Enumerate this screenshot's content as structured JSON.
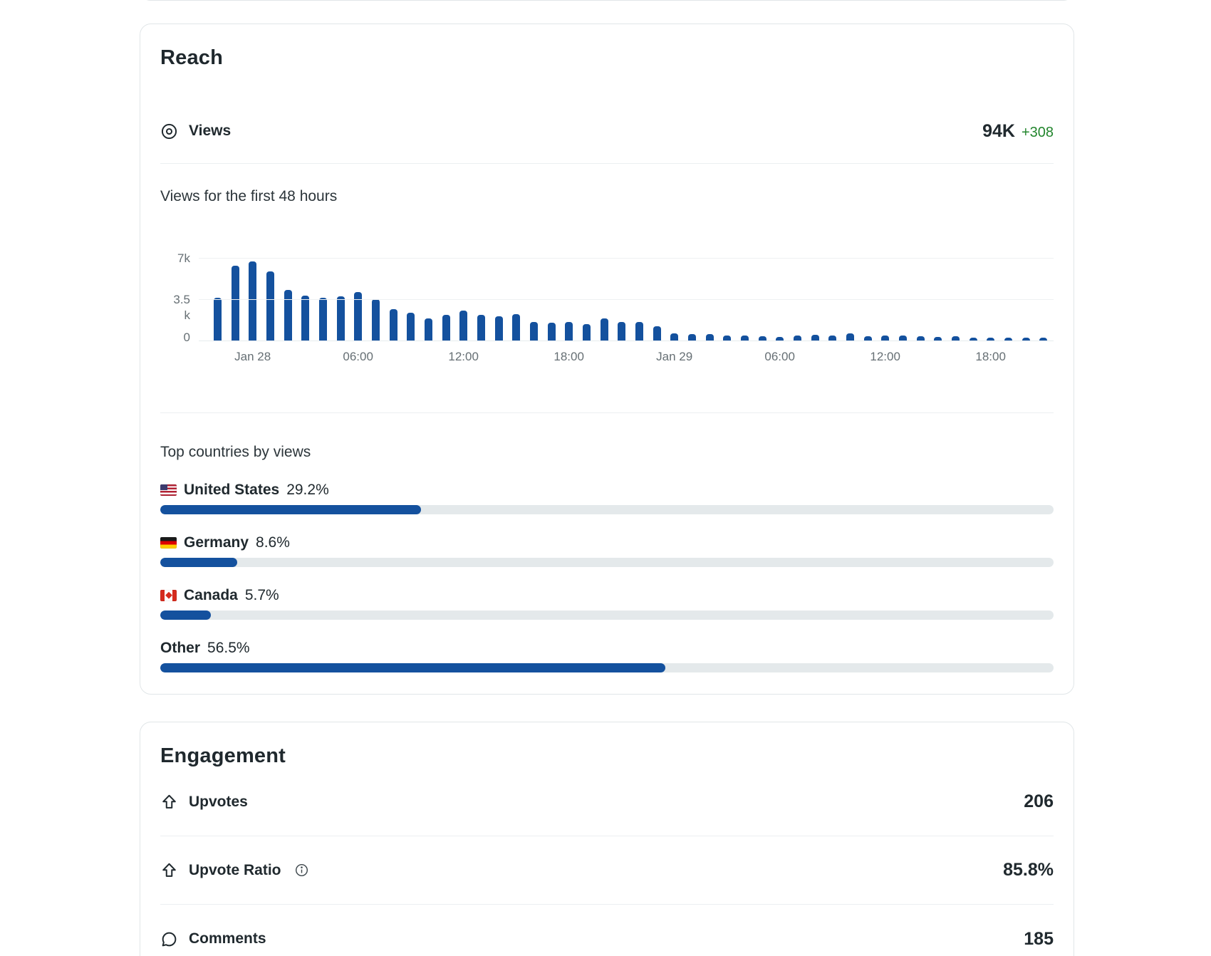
{
  "reach_card": {
    "title": "Reach",
    "views_row": {
      "icon": "eye-icon",
      "label": "Views",
      "value": "94K",
      "delta": "+308"
    }
  },
  "chart_data": {
    "type": "bar",
    "title": "Views for the first 48 hours",
    "unit": "views per hour",
    "bar_color": "#14519e",
    "ylim": [
      0,
      7000
    ],
    "yticks": [
      {
        "label": "7k",
        "value": 7000
      },
      {
        "label": "3.5k",
        "value": 3500
      },
      {
        "label": "0",
        "value": 0
      }
    ],
    "x_ticks": [
      {
        "index": 2,
        "label": "Jan 28"
      },
      {
        "index": 8,
        "label": "06:00"
      },
      {
        "index": 14,
        "label": "12:00"
      },
      {
        "index": 20,
        "label": "18:00"
      },
      {
        "index": 26,
        "label": "Jan 29"
      },
      {
        "index": 32,
        "label": "06:00"
      },
      {
        "index": 38,
        "label": "12:00"
      },
      {
        "index": 44,
        "label": "18:00"
      }
    ],
    "values": [
      3680,
      6410,
      6740,
      5890,
      4340,
      3840,
      3680,
      3780,
      4180,
      3540,
      2730,
      2400,
      1950,
      2220,
      2570,
      2260,
      2120,
      2290,
      1610,
      1540,
      1650,
      1460,
      1910,
      1610,
      1650,
      1260,
      640,
      620,
      580,
      470,
      510,
      430,
      390,
      510,
      540,
      470,
      680,
      410,
      510,
      470,
      420,
      350,
      400,
      250,
      300,
      250,
      220,
      180
    ]
  },
  "countries": {
    "heading": "Top countries by views",
    "bar_color": "#14519e",
    "track_color": "#e4e9eb",
    "items": [
      {
        "flag": "us-flag-icon",
        "flag_class": "flag-us",
        "name": "United States",
        "pct_label": "29.2%",
        "pct": 29.2
      },
      {
        "flag": "germany-flag-icon",
        "flag_class": "flag-de",
        "name": "Germany",
        "pct_label": "8.6%",
        "pct": 8.6
      },
      {
        "flag": "canada-flag-icon",
        "flag_class": "flag-ca",
        "name": "Canada",
        "pct_label": "5.7%",
        "pct": 5.7
      },
      {
        "flag": null,
        "flag_class": null,
        "name": "Other",
        "pct_label": "56.5%",
        "pct": 56.5
      }
    ]
  },
  "engagement_card": {
    "title": "Engagement",
    "rows": [
      {
        "icon": "upvote-icon",
        "label": "Upvotes",
        "info": false,
        "value": "206"
      },
      {
        "icon": "upvote-icon",
        "label": "Upvote Ratio",
        "info": true,
        "value": "85.8%"
      },
      {
        "icon": "comment-icon",
        "label": "Comments",
        "info": false,
        "value": "185"
      }
    ]
  },
  "colors": {
    "accent_blue": "#14519e",
    "delta_green": "#23862e",
    "text_dark": "#20292e",
    "axis_gray": "#666f74"
  }
}
